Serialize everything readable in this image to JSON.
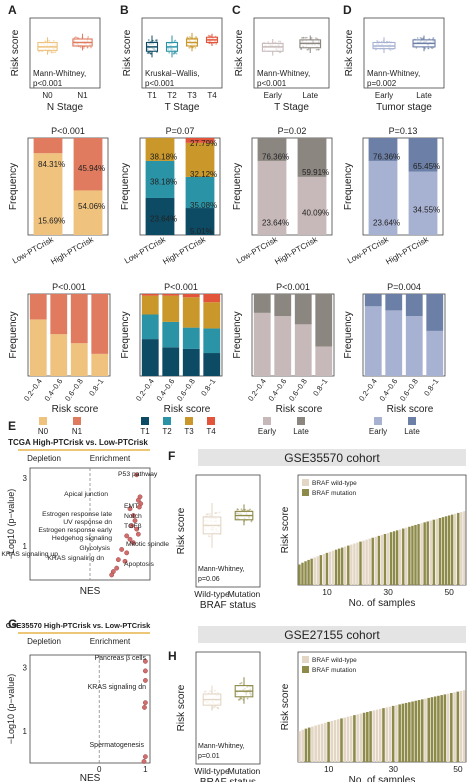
{
  "panels": {
    "A": {
      "letter": "A",
      "box": {
        "xlabel": "N Stage",
        "ylabel": "Risk score",
        "categories": [
          "N0",
          "N1"
        ],
        "stat_line1": "Mann-Whitney,",
        "stat_line2": "p<0.001"
      },
      "stack": {
        "pvalue": "P<0.001",
        "ylabel": "Frequency",
        "categories": [
          "Low-PTCrisk",
          "High-PTCrisk"
        ],
        "labels": [
          [
            "84.31%",
            "15.69%"
          ],
          [
            "45.94%",
            "54.06%"
          ]
        ]
      },
      "bins": {
        "pvalue": "P<0.001",
        "ylabel": "Frequency",
        "xlabel": "Risk score",
        "categories": [
          "0.2~0.4",
          "0.4~0.6",
          "0.6~0.8",
          "0.8~1"
        ],
        "legend": [
          "N0",
          "N1"
        ]
      }
    },
    "B": {
      "letter": "B",
      "box": {
        "xlabel": "T Stage",
        "ylabel": "Risk score",
        "categories": [
          "T1",
          "T2",
          "T3",
          "T4"
        ],
        "stat_line1": "Kruskal−Wallis,",
        "stat_line2": "p<0.001"
      },
      "stack": {
        "pvalue": "P=0.07",
        "ylabel": "Frequency",
        "categories": [
          "Low-PTCrisk",
          "High-PTCrisk"
        ],
        "labels": [
          [
            "38.18%",
            "38.18%",
            "23.64%",
            ""
          ],
          [
            "27.79%",
            "32.12%",
            "35.08%",
            "5.01%"
          ]
        ]
      },
      "bins": {
        "pvalue": "P<0.001",
        "ylabel": "Frequency",
        "xlabel": "Risk score",
        "categories": [
          "0.2~0.4",
          "0.4~0.6",
          "0.6~0.8",
          "0.8~1"
        ],
        "legend": [
          "T1",
          "T2",
          "T3",
          "T4"
        ]
      }
    },
    "C": {
      "letter": "C",
      "box": {
        "xlabel": "T Stage",
        "ylabel": "Risk score",
        "categories": [
          "Early",
          "Late"
        ],
        "stat_line1": "Mann-Whitney,",
        "stat_line2": "p<0.001"
      },
      "stack": {
        "pvalue": "P=0.02",
        "ylabel": "Frequency",
        "categories": [
          "Low-PTCrisk",
          "High-PTCrisk"
        ],
        "labels": [
          [
            "76.36%",
            "23.64%"
          ],
          [
            "59.91%",
            "40.09%"
          ]
        ]
      },
      "bins": {
        "pvalue": "P<0.001",
        "ylabel": "Frequency",
        "xlabel": "Risk score",
        "categories": [
          "0.2~0.4",
          "0.4~0.6",
          "0.6~0.8",
          "0.8~1"
        ],
        "legend": [
          "Early",
          "Late"
        ]
      }
    },
    "D": {
      "letter": "D",
      "box": {
        "xlabel": "Tumor stage",
        "ylabel": "Risk score",
        "categories": [
          "Early",
          "Late"
        ],
        "stat_line1": "Mann-Whitney,",
        "stat_line2": "p=0.002"
      },
      "stack": {
        "pvalue": "P=0.13",
        "ylabel": "Frequency",
        "categories": [
          "Low-PTCrisk",
          "High-PTCrisk"
        ],
        "labels": [
          [
            "76.36%",
            "23.64%"
          ],
          [
            "65.45%",
            "34.55%"
          ]
        ]
      },
      "bins": {
        "pvalue": "P=0.004",
        "ylabel": "Frequency",
        "xlabel": "Risk score",
        "categories": [
          "0.2~0.4",
          "0.4~0.6",
          "0.6~0.8",
          "0.8~1"
        ],
        "legend": [
          "Early",
          "Late"
        ]
      }
    },
    "E": {
      "letter": "E",
      "title": "TCGA High-PTCrisk vs. Low-PTCrisk",
      "depletion": "Depletion",
      "enrichment": "Enrichment",
      "xlabel": "NES",
      "ylabel": "−Log10 (p−value)",
      "yticks": [
        "1",
        "3"
      ],
      "labels": [
        "P53 pathway",
        "Apical junction",
        "EMT",
        "Notch",
        "TGFβ",
        "Estrogen response late",
        "UV response dn",
        "Estrogen response early",
        "Hedgehog signaling",
        "Glycolysis",
        "KRAS signaling up",
        "KRAS signaling dn",
        "Mitotic spindle",
        "Apoptosis"
      ]
    },
    "F": {
      "letter": "F",
      "banner": "GSE35570 cohort",
      "box": {
        "xlabel": "BRAF status",
        "ylabel": "Risk score",
        "categories": [
          "Wild-type",
          "Mutation"
        ],
        "stat_line1": "Mann-Whitney,",
        "stat_line2": "p=0.06"
      },
      "bars": {
        "ylabel": "Risk score",
        "xlabel": "No. of samples",
        "xticks": [
          "10",
          "30",
          "50"
        ],
        "legend": [
          "BRAF wild-type",
          "BRAF mutation"
        ]
      }
    },
    "G": {
      "letter": "G",
      "title": "GSE35570 High-PTCrisk vs. Low-PTCrisk",
      "depletion": "Depletion",
      "enrichment": "Enrichment",
      "xlabel": "NES",
      "ylabel": "−Log10 (p−value)",
      "xticks": [
        "0",
        "1"
      ],
      "yticks": [
        "1",
        "3"
      ],
      "labels": [
        "Pancreas β cells",
        "KRAS signaling dn",
        "Spermatogenesis"
      ]
    },
    "H": {
      "letter": "H",
      "banner": "GSE27155 cohort",
      "box": {
        "xlabel": "BRAF status",
        "ylabel": "Risk score",
        "categories": [
          "Wild-type",
          "Mutation"
        ],
        "stat_line1": "Mann-Whitney,",
        "stat_line2": "p=0.01"
      },
      "bars": {
        "ylabel": "Risk score",
        "xlabel": "No. of samples",
        "xticks": [
          "10",
          "30",
          "50"
        ],
        "legend": [
          "BRAF wild-type",
          "BRAF mutation"
        ]
      }
    }
  },
  "colors": {
    "A": [
      "#efc27e",
      "#e07b5f"
    ],
    "B": [
      "#0d4a63",
      "#2b93a6",
      "#c9972a",
      "#e2553b"
    ],
    "C": [
      "#c7b9b9",
      "#8c8680"
    ],
    "D": [
      "#a7b1d2",
      "#6c7fa6"
    ],
    "FH": [
      "#e3d6c5",
      "#8e8a4a"
    ],
    "volcano": "#d36d6d",
    "enrich_line": "#e9b44c"
  },
  "chart_data": [
    {
      "panel": "A-stack",
      "type": "bar",
      "categories": [
        "Low-PTCrisk",
        "High-PTCrisk"
      ],
      "series": [
        {
          "name": "N0",
          "values": [
            84.31,
            45.94
          ]
        },
        {
          "name": "N1",
          "values": [
            15.69,
            54.06
          ]
        }
      ],
      "ylim": [
        0,
        100
      ]
    },
    {
      "panel": "B-stack",
      "type": "bar",
      "categories": [
        "Low-PTCrisk",
        "High-PTCrisk"
      ],
      "series": [
        {
          "name": "T1",
          "values": [
            38.18,
            27.79
          ]
        },
        {
          "name": "T2",
          "values": [
            38.18,
            32.12
          ]
        },
        {
          "name": "T3",
          "values": [
            23.64,
            35.08
          ]
        },
        {
          "name": "T4",
          "values": [
            0,
            5.01
          ]
        }
      ],
      "ylim": [
        0,
        100
      ]
    },
    {
      "panel": "C-stack",
      "type": "bar",
      "categories": [
        "Low-PTCrisk",
        "High-PTCrisk"
      ],
      "series": [
        {
          "name": "Early",
          "values": [
            76.36,
            59.91
          ]
        },
        {
          "name": "Late",
          "values": [
            23.64,
            40.09
          ]
        }
      ],
      "ylim": [
        0,
        100
      ]
    },
    {
      "panel": "D-stack",
      "type": "bar",
      "categories": [
        "Low-PTCrisk",
        "High-PTCrisk"
      ],
      "series": [
        {
          "name": "Early",
          "values": [
            76.36,
            65.45
          ]
        },
        {
          "name": "Late",
          "values": [
            23.64,
            34.55
          ]
        }
      ],
      "ylim": [
        0,
        100
      ]
    },
    {
      "panel": "A-bins",
      "type": "bar",
      "categories": [
        "0.2~0.4",
        "0.4~0.6",
        "0.6~0.8",
        "0.8~1"
      ],
      "series": [
        {
          "name": "N0",
          "values": [
            0.69,
            0.51,
            0.4,
            0.27
          ]
        },
        {
          "name": "N1",
          "values": [
            0.31,
            0.49,
            0.6,
            0.73
          ]
        }
      ],
      "ylim": [
        0,
        1
      ]
    },
    {
      "panel": "B-bins",
      "type": "bar",
      "categories": [
        "0.2~0.4",
        "0.4~0.6",
        "0.6~0.8",
        "0.8~1"
      ],
      "series": [
        {
          "name": "T1",
          "values": [
            0.45,
            0.35,
            0.33,
            0.28
          ]
        },
        {
          "name": "T2",
          "values": [
            0.3,
            0.31,
            0.26,
            0.3
          ]
        },
        {
          "name": "T3",
          "values": [
            0.23,
            0.32,
            0.37,
            0.32
          ]
        },
        {
          "name": "T4",
          "values": [
            0.02,
            0.02,
            0.04,
            0.1
          ]
        }
      ],
      "ylim": [
        0,
        1
      ]
    },
    {
      "panel": "C-bins",
      "type": "bar",
      "categories": [
        "0.2~0.4",
        "0.4~0.6",
        "0.6~0.8",
        "0.8~1"
      ],
      "series": [
        {
          "name": "Early",
          "values": [
            0.77,
            0.73,
            0.63,
            0.36
          ]
        },
        {
          "name": "Late",
          "values": [
            0.23,
            0.27,
            0.37,
            0.64
          ]
        }
      ],
      "ylim": [
        0,
        1
      ]
    },
    {
      "panel": "D-bins",
      "type": "bar",
      "categories": [
        "0.2~0.4",
        "0.4~0.6",
        "0.6~0.8",
        "0.8~1"
      ],
      "series": [
        {
          "name": "Early",
          "values": [
            0.85,
            0.8,
            0.73,
            0.55
          ]
        },
        {
          "name": "Late",
          "values": [
            0.15,
            0.2,
            0.27,
            0.45
          ]
        }
      ],
      "ylim": [
        0,
        1
      ]
    },
    {
      "panel": "A-box",
      "type": "box",
      "categories": [
        "N0",
        "N1"
      ],
      "series": [
        {
          "name": "N0",
          "values": [
            0.58,
            0.63,
            0.67,
            0.72,
            0.78
          ]
        },
        {
          "name": "N1",
          "values": [
            0.63,
            0.68,
            0.72,
            0.76,
            0.82
          ]
        }
      ],
      "ylim": [
        0.2,
        1.0
      ]
    },
    {
      "panel": "B-box",
      "type": "box",
      "categories": [
        "T1",
        "T2",
        "T3",
        "T4"
      ],
      "series": [
        {
          "name": "T1",
          "values": [
            0.55,
            0.62,
            0.67,
            0.72,
            0.8
          ]
        },
        {
          "name": "T2",
          "values": [
            0.55,
            0.62,
            0.67,
            0.72,
            0.8
          ]
        },
        {
          "name": "T3",
          "values": [
            0.62,
            0.68,
            0.72,
            0.76,
            0.83
          ]
        },
        {
          "name": "T4",
          "values": [
            0.68,
            0.72,
            0.75,
            0.78,
            0.82
          ]
        }
      ],
      "ylim": [
        0.2,
        1.0
      ]
    },
    {
      "panel": "C-box",
      "type": "box",
      "categories": [
        "Early",
        "Late"
      ],
      "series": [
        {
          "name": "Early",
          "values": [
            0.57,
            0.62,
            0.67,
            0.71,
            0.76
          ]
        },
        {
          "name": "Late",
          "values": [
            0.6,
            0.66,
            0.71,
            0.75,
            0.8
          ]
        }
      ],
      "ylim": [
        0.2,
        1.0
      ]
    },
    {
      "panel": "D-box",
      "type": "box",
      "categories": [
        "Early",
        "Late"
      ],
      "series": [
        {
          "name": "Early",
          "values": [
            0.6,
            0.65,
            0.68,
            0.72,
            0.78
          ]
        },
        {
          "name": "Late",
          "values": [
            0.62,
            0.67,
            0.71,
            0.75,
            0.8
          ]
        }
      ],
      "ylim": [
        0.2,
        1.0
      ]
    },
    {
      "panel": "F-box",
      "type": "box",
      "categories": [
        "Wild-type",
        "Mutation"
      ],
      "series": [
        {
          "name": "Wild-type",
          "values": [
            0.48,
            0.58,
            0.64,
            0.7,
            0.8
          ]
        },
        {
          "name": "Mutation",
          "values": [
            0.64,
            0.68,
            0.71,
            0.74,
            0.79
          ]
        }
      ],
      "ylim": [
        0.2,
        1.0
      ]
    },
    {
      "panel": "H-box",
      "type": "box",
      "categories": [
        "Wild-type",
        "Mutation"
      ],
      "series": [
        {
          "name": "Wild-type",
          "values": [
            0.58,
            0.62,
            0.66,
            0.7,
            0.76
          ]
        },
        {
          "name": "Mutation",
          "values": [
            0.63,
            0.68,
            0.72,
            0.76,
            0.82
          ]
        }
      ],
      "ylim": [
        0.2,
        1.0
      ]
    },
    {
      "panel": "E",
      "type": "scatter",
      "xlabel": "NES",
      "ylabel": "−Log10 (p−value)",
      "points": [
        [
          1.4,
          3.1
        ],
        [
          1.5,
          2.45
        ],
        [
          1.45,
          2.35
        ],
        [
          1.52,
          2.25
        ],
        [
          1.48,
          2.15
        ],
        [
          1.2,
          2.1
        ],
        [
          1.3,
          1.9
        ],
        [
          1.35,
          1.75
        ],
        [
          1.25,
          1.6
        ],
        [
          1.4,
          1.5
        ],
        [
          1.1,
          1.3
        ],
        [
          1.2,
          1.2
        ],
        [
          1.45,
          1.35
        ],
        [
          1.3,
          1.1
        ],
        [
          0.95,
          0.9
        ],
        [
          1.1,
          0.8
        ],
        [
          0.85,
          0.6
        ],
        [
          1.05,
          0.55
        ],
        [
          0.8,
          0.35
        ],
        [
          0.7,
          0.25
        ],
        [
          0.65,
          0.15
        ]
      ],
      "xlim": [
        -1.8,
        1.8
      ],
      "ylim": [
        0,
        3.3
      ]
    },
    {
      "panel": "G",
      "type": "scatter",
      "xlabel": "NES",
      "ylabel": "−Log10 (p−value)",
      "points": [
        [
          1.0,
          3.2
        ],
        [
          1.0,
          2.9
        ],
        [
          1.0,
          2.6
        ],
        [
          1.0,
          1.9
        ],
        [
          0.98,
          1.75
        ],
        [
          1.0,
          0.2
        ],
        [
          0.97,
          0.05
        ]
      ],
      "xlim": [
        -1.5,
        1.1
      ],
      "ylim": [
        0,
        3.4
      ]
    },
    {
      "panel": "F-bars",
      "type": "bar",
      "xlabel": "No. of samples",
      "ylabel": "Risk score",
      "n": 55,
      "range": [
        0.4,
        0.92
      ],
      "mutation_fraction": 0.5
    },
    {
      "panel": "H-bars",
      "type": "bar",
      "xlabel": "No. of samples",
      "ylabel": "Risk score",
      "n": 52,
      "range": [
        0.5,
        0.9
      ],
      "mutation_fraction": 0.55
    }
  ]
}
